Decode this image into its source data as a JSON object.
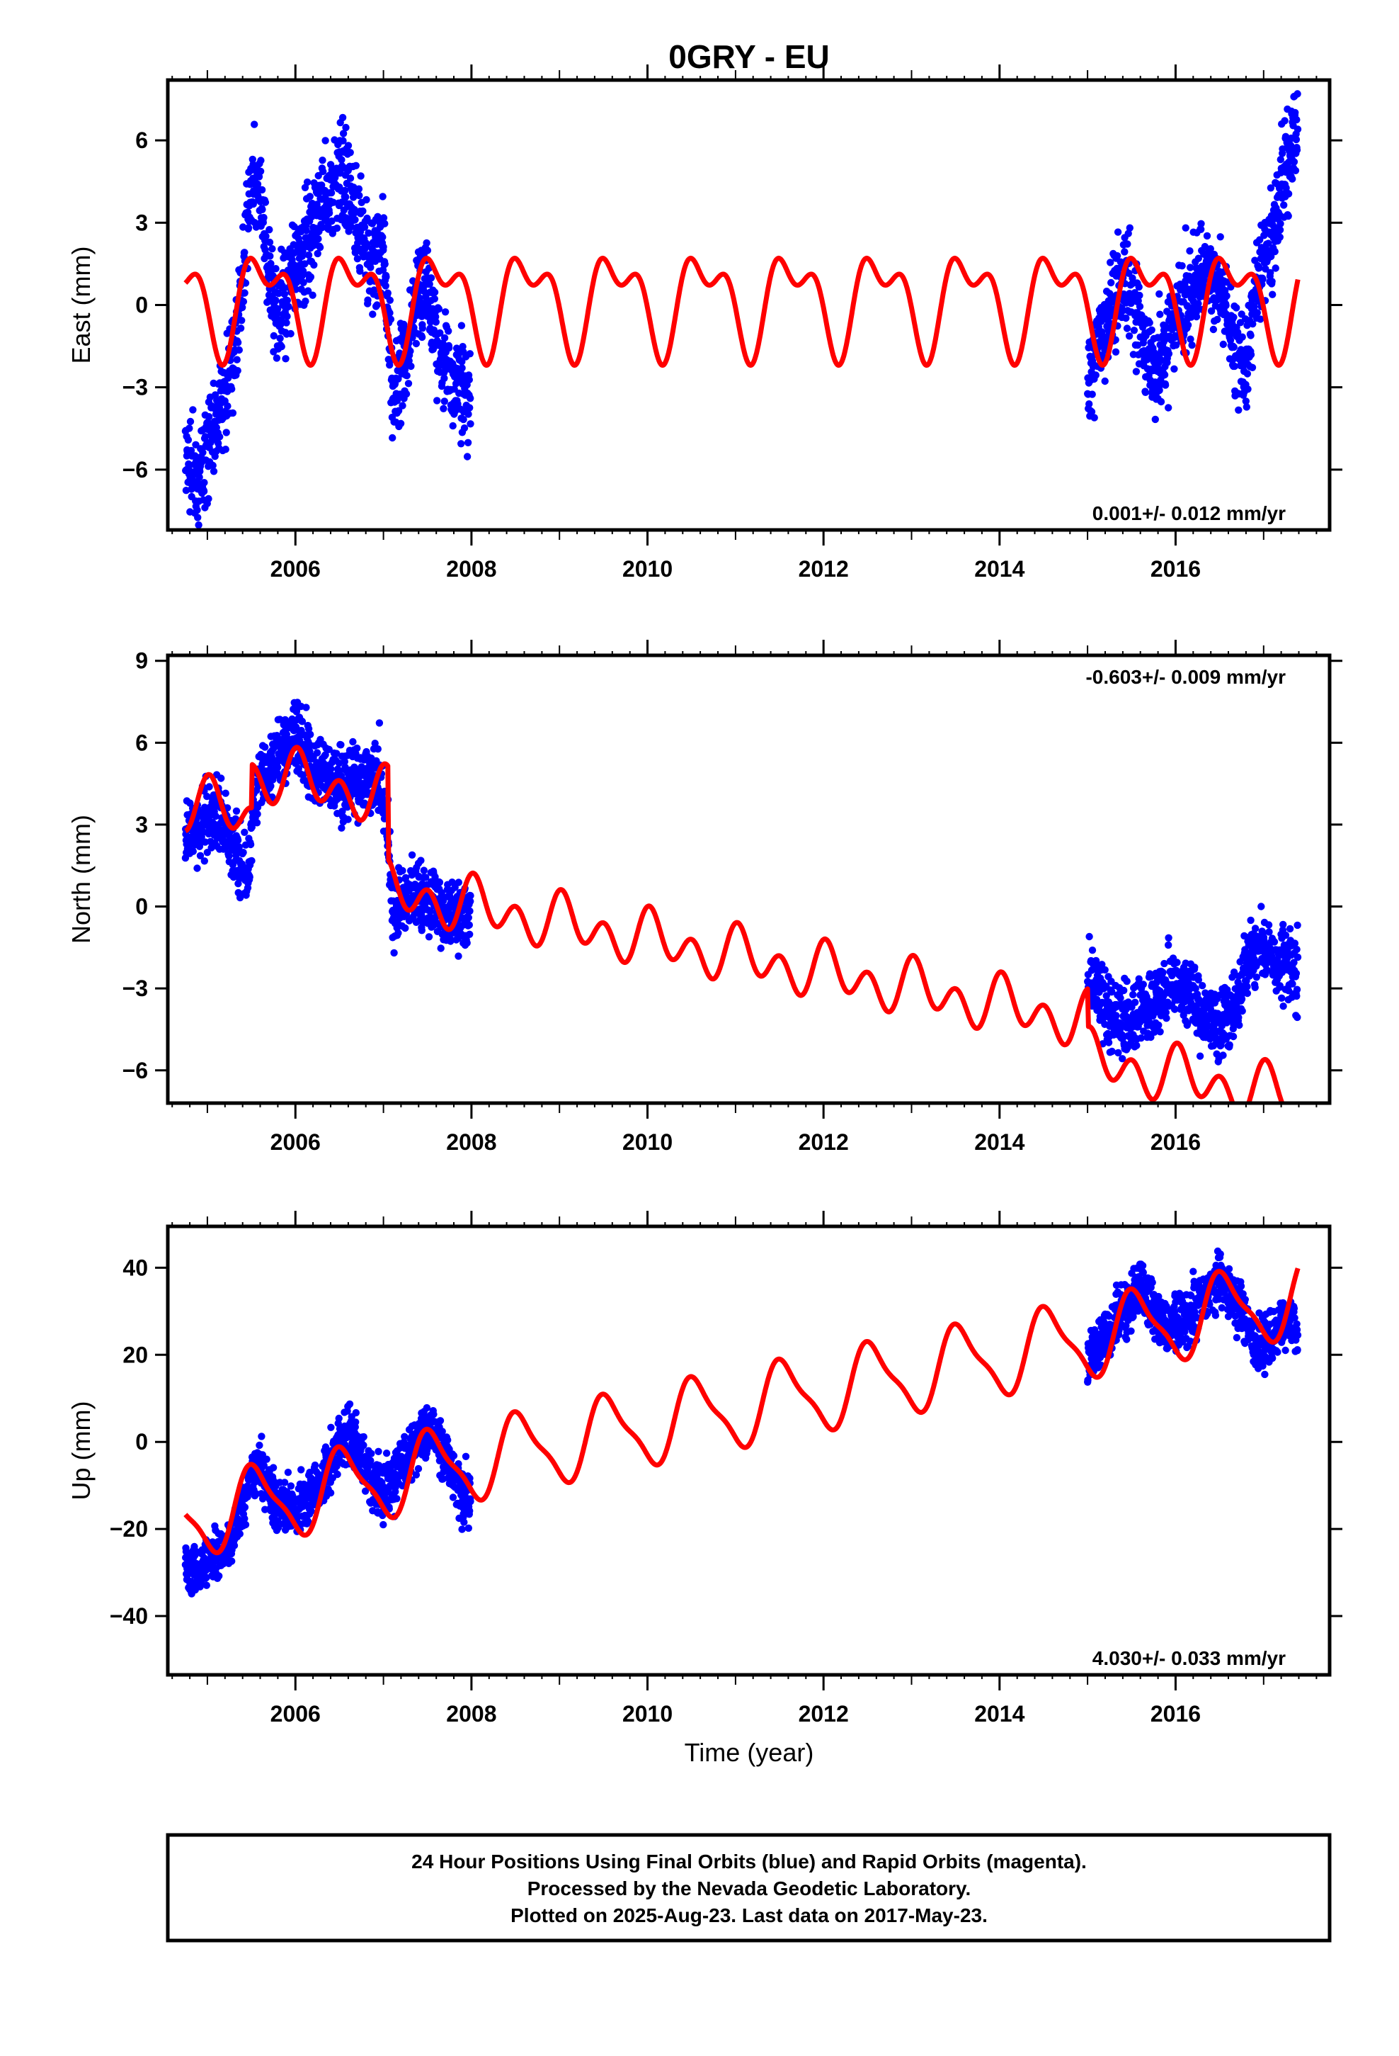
{
  "title": "0GRY - EU",
  "xlabel": "Time (year)",
  "colors": {
    "final_orbits": "#0000ff",
    "rapid_orbits": "#ff00ff",
    "model": "#ff0000",
    "axes": "#000000"
  },
  "footer": {
    "line1": "24 Hour Positions Using Final Orbits (blue) and Rapid Orbits (magenta).",
    "line2": "Processed by the Nevada Geodetic Laboratory.",
    "line3": "Plotted on 2025-Aug-23. Last data on 2017-May-23."
  },
  "chart_data": [
    {
      "type": "scatter",
      "name": "east",
      "ylabel": "East (mm)",
      "rate_text": "0.001+/- 0.012 mm/yr",
      "rate_position": "bottom-right",
      "xlim": [
        2004.55,
        2017.75
      ],
      "ylim": [
        -8.2,
        8.2
      ],
      "xticks": [
        2006,
        2008,
        2010,
        2012,
        2014,
        2016
      ],
      "yticks": [
        -6,
        -3,
        0,
        3,
        6
      ],
      "ytick_labels": [
        "−6",
        "−3",
        "0",
        "3",
        "6"
      ],
      "grid": false,
      "model": {
        "trend": 0.0,
        "t0": 2010.5,
        "offset": 0.2,
        "annual_cos": -0.9,
        "annual_sin": -1.2,
        "semi_cos": 0.6,
        "semi_sin": -0.7
      },
      "data_trend": [
        [
          2004.75,
          -5.5
        ],
        [
          2004.9,
          -6.5
        ],
        [
          2005.0,
          -4.8
        ],
        [
          2005.2,
          -3.2
        ],
        [
          2005.3,
          -2.0
        ],
        [
          2005.4,
          1.0
        ],
        [
          2005.5,
          4.5
        ],
        [
          2005.6,
          4.0
        ],
        [
          2005.7,
          1.0
        ],
        [
          2005.8,
          -0.5
        ],
        [
          2005.9,
          0.5
        ],
        [
          2006.0,
          1.5
        ],
        [
          2006.2,
          2.5
        ],
        [
          2006.3,
          3.8
        ],
        [
          2006.4,
          4.2
        ],
        [
          2006.5,
          4.8
        ],
        [
          2006.6,
          4.3
        ],
        [
          2006.7,
          3.0
        ],
        [
          2006.8,
          2.0
        ],
        [
          2006.9,
          1.5
        ],
        [
          2007.0,
          2.0
        ],
        [
          2007.1,
          -3.0
        ],
        [
          2007.2,
          -2.5
        ],
        [
          2007.3,
          -1.0
        ],
        [
          2007.4,
          0.5
        ],
        [
          2007.5,
          0.2
        ],
        [
          2007.6,
          -1.5
        ],
        [
          2007.7,
          -2.0
        ],
        [
          2007.8,
          -2.8
        ],
        [
          2007.99,
          -3.5
        ],
        [
          2015.0,
          -2.5
        ],
        [
          2015.2,
          -1.0
        ],
        [
          2015.4,
          1.5
        ],
        [
          2015.5,
          0.5
        ],
        [
          2015.6,
          -1.0
        ],
        [
          2015.75,
          -2.5
        ],
        [
          2015.9,
          -1.5
        ],
        [
          2016.0,
          -0.5
        ],
        [
          2016.2,
          0.5
        ],
        [
          2016.35,
          1.5
        ],
        [
          2016.5,
          0.5
        ],
        [
          2016.65,
          -1.0
        ],
        [
          2016.8,
          -2.5
        ],
        [
          2016.9,
          0.5
        ],
        [
          2017.0,
          1.5
        ],
        [
          2017.1,
          2.5
        ],
        [
          2017.2,
          4.0
        ],
        [
          2017.3,
          5.5
        ],
        [
          2017.39,
          6.8
        ]
      ],
      "noise": 1.3,
      "seed": 11
    },
    {
      "type": "scatter",
      "name": "north",
      "ylabel": "North (mm)",
      "rate_text": "-0.603+/- 0.009 mm/yr",
      "rate_position": "top-right",
      "xlim": [
        2004.55,
        2017.75
      ],
      "ylim": [
        -7.2,
        9.2
      ],
      "xticks": [
        2006,
        2008,
        2010,
        2012,
        2014,
        2016
      ],
      "yticks": [
        -6,
        -3,
        0,
        3,
        6,
        9
      ],
      "ytick_labels": [
        "−6",
        "−3",
        "0",
        "3",
        "6",
        "9"
      ],
      "grid": false,
      "model": {
        "trend": -0.603,
        "t0": 2010.5,
        "offset": 0.3,
        "annual_cos": 0.45,
        "annual_sin": 0.25,
        "semi_cos": 0.75,
        "semi_sin": 0.1,
        "steps": [
          [
            2005.5,
            1.6
          ],
          [
            2007.05,
            -3.4
          ],
          [
            2015.0,
            -1.4
          ]
        ]
      },
      "data_trend": [
        [
          2004.75,
          2.5
        ],
        [
          2004.9,
          3.0
        ],
        [
          2005.1,
          3.5
        ],
        [
          2005.3,
          2.0
        ],
        [
          2005.45,
          1.0
        ],
        [
          2005.55,
          4.5
        ],
        [
          2005.7,
          5.2
        ],
        [
          2005.9,
          5.8
        ],
        [
          2006.0,
          6.5
        ],
        [
          2006.2,
          5.0
        ],
        [
          2006.4,
          4.5
        ],
        [
          2006.6,
          4.5
        ],
        [
          2006.8,
          4.6
        ],
        [
          2006.95,
          4.8
        ],
        [
          2007.05,
          2.5
        ],
        [
          2007.1,
          -0.5
        ],
        [
          2007.3,
          0.5
        ],
        [
          2007.5,
          0.2
        ],
        [
          2007.7,
          -0.3
        ],
        [
          2007.85,
          -0.5
        ],
        [
          2007.99,
          0.0
        ],
        [
          2015.0,
          -2.5
        ],
        [
          2015.2,
          -3.8
        ],
        [
          2015.4,
          -4.2
        ],
        [
          2015.6,
          -4.0
        ],
        [
          2015.75,
          -3.5
        ],
        [
          2015.9,
          -2.8
        ],
        [
          2016.1,
          -3.2
        ],
        [
          2016.3,
          -3.8
        ],
        [
          2016.5,
          -4.2
        ],
        [
          2016.7,
          -3.5
        ],
        [
          2016.85,
          -1.8
        ],
        [
          2017.0,
          -1.5
        ],
        [
          2017.2,
          -2.0
        ],
        [
          2017.39,
          -2.5
        ]
      ],
      "noise": 0.9,
      "seed": 23
    },
    {
      "type": "scatter",
      "name": "up",
      "ylabel": "Up (mm)",
      "rate_text": "4.030+/- 0.033 mm/yr",
      "rate_position": "bottom-right",
      "xlim": [
        2004.55,
        2017.75
      ],
      "ylim": [
        -53.5,
        49.5
      ],
      "xticks": [
        2006,
        2008,
        2010,
        2012,
        2014,
        2016
      ],
      "yticks": [
        -40,
        -20,
        0,
        20,
        40
      ],
      "ytick_labels": [
        "−40",
        "−20",
        "0",
        "20",
        "40"
      ],
      "grid": false,
      "model": {
        "trend": 4.03,
        "t0": 2010.5,
        "offset": 5.5,
        "annual_cos": -8.0,
        "annual_sin": -2.5,
        "semi_cos": 1.5,
        "semi_sin": -1.8
      },
      "data_trend": [
        [
          2004.75,
          -28
        ],
        [
          2004.9,
          -30
        ],
        [
          2005.1,
          -26
        ],
        [
          2005.3,
          -22
        ],
        [
          2005.5,
          -8
        ],
        [
          2005.6,
          -6
        ],
        [
          2005.8,
          -14
        ],
        [
          2006.0,
          -16
        ],
        [
          2006.2,
          -12
        ],
        [
          2006.4,
          -5
        ],
        [
          2006.55,
          2
        ],
        [
          2006.7,
          -2
        ],
        [
          2006.85,
          -8
        ],
        [
          2007.0,
          -12
        ],
        [
          2007.2,
          -6
        ],
        [
          2007.4,
          0
        ],
        [
          2007.55,
          4
        ],
        [
          2007.7,
          -4
        ],
        [
          2007.85,
          -10
        ],
        [
          2007.99,
          -14
        ],
        [
          2015.0,
          18
        ],
        [
          2015.2,
          24
        ],
        [
          2015.4,
          30
        ],
        [
          2015.6,
          36
        ],
        [
          2015.75,
          30
        ],
        [
          2015.9,
          26
        ],
        [
          2016.1,
          28
        ],
        [
          2016.3,
          32
        ],
        [
          2016.5,
          37
        ],
        [
          2016.7,
          32
        ],
        [
          2016.9,
          24
        ],
        [
          2017.0,
          22
        ],
        [
          2017.2,
          27
        ],
        [
          2017.39,
          26
        ]
      ],
      "noise": 4.5,
      "seed": 37
    }
  ]
}
